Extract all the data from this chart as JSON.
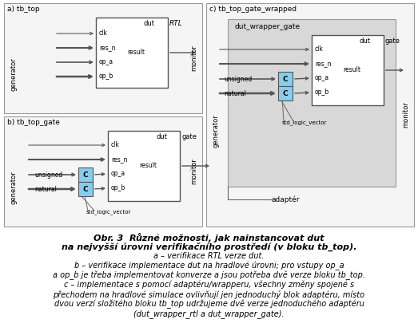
{
  "title_line1": "Obr. 3  Různé možnosti, jak nainstancovat dut",
  "title_line2": "na nejvyšší úrovni verifikačního prostředí (v bloku tb_top).",
  "caption_a": "a – verifikace RTL verze dut.",
  "caption_b": "b – verifikace implementace dut na hradlové úrovni; pro vstupy op_a",
  "caption_b2": "a op_b je třeba implementovat konverze a jsou potřeba dvě verze bloku tb_top.",
  "caption_c": "c – implementace s pomocí adaptéru/wrapperu, všechny změny spojené s",
  "caption_c2": "přechodem na hradlové simulace ovlivňují jen jednoduchý blok adaptéru, místo",
  "caption_c3": "dvou verzí složitého bloku tb_top udržujeme dvě verze jednoduchého adaptéru",
  "caption_c4": "(dut_wrapper_rtl a dut_wrapper_gate).",
  "bg_color": "#ffffff",
  "outer_box_face": "#f5f5f5",
  "outer_box_edge": "#999999",
  "dut_wrapper_face": "#d8d8d8",
  "dut_wrapper_edge": "#999999",
  "dut_face": "#ffffff",
  "dut_edge": "#555555",
  "converter_face": "#87ceeb",
  "converter_edge": "#555555",
  "arrow_color": "#666666",
  "line_color": "#666666",
  "text_color": "#000000"
}
